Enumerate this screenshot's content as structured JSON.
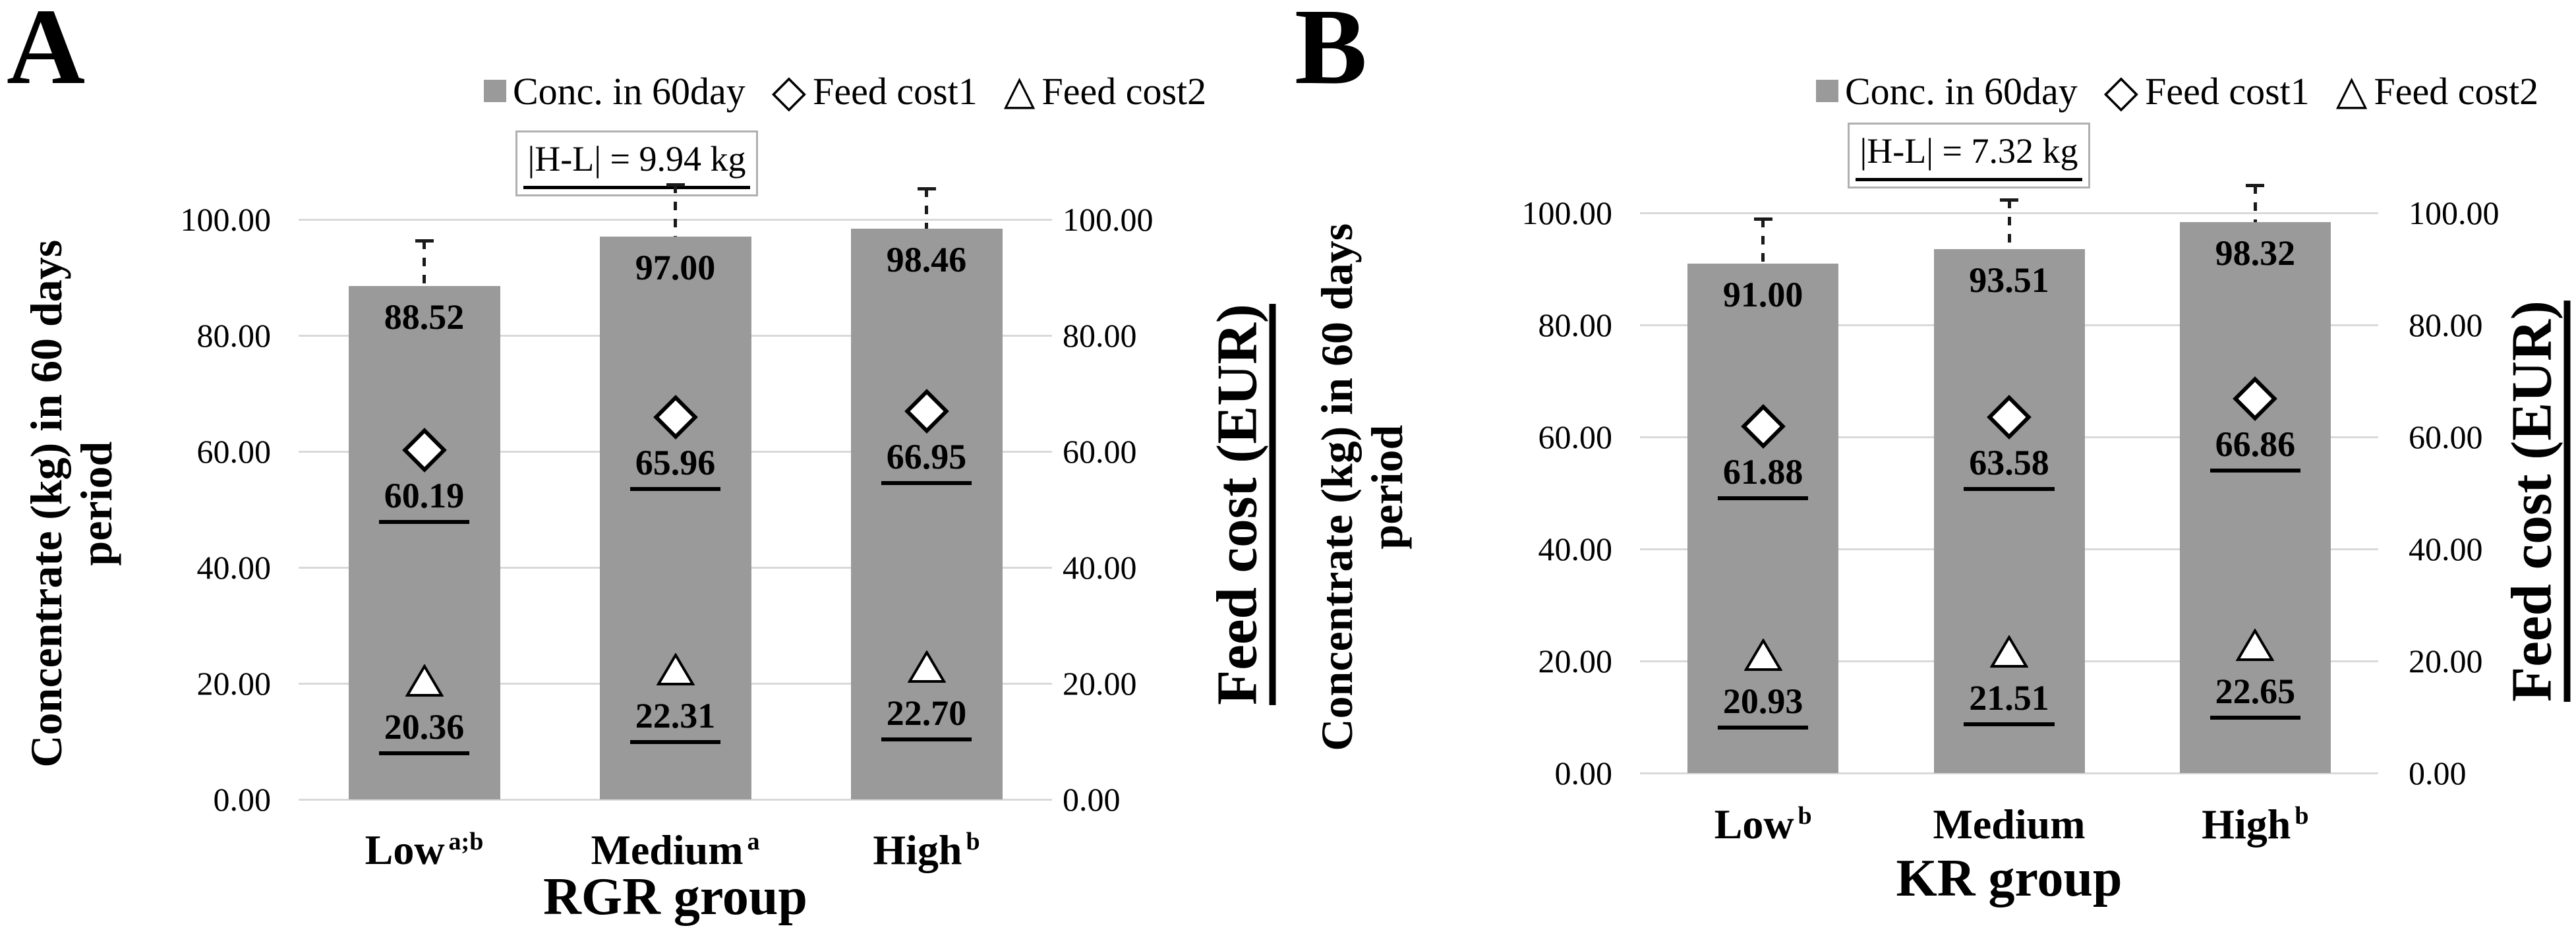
{
  "chart_data": [
    {
      "type": "bar",
      "panel": "A",
      "legend": [
        {
          "marker": "square",
          "label": "Conc. in 60day"
        },
        {
          "marker": "diamond",
          "label": "Feed cost1"
        },
        {
          "marker": "triangle",
          "label": "Feed cost2"
        }
      ],
      "legend_position": "top",
      "annotation": "|H-L| = 9.94 kg",
      "xlabel": "RGR group",
      "ylabel_left": [
        "Concentrate (kg) in 60 days",
        "period"
      ],
      "ylabel_right": "Feed cost (EUR)",
      "ylim": [
        0,
        100
      ],
      "grid": true,
      "yticks_values": [
        100,
        80,
        60,
        40,
        20,
        0
      ],
      "yticks_labels": [
        "100.00",
        "80.00",
        "60.00",
        "40.00",
        "20.00",
        "0.00"
      ],
      "categories": [
        {
          "label": "Low",
          "sup": "a;b"
        },
        {
          "label": "Medium",
          "sup": "a"
        },
        {
          "label": "High",
          "sup": "b"
        }
      ],
      "series": [
        {
          "name": "Conc. in 60day",
          "type": "bar",
          "values": [
            88.52,
            97.0,
            98.46
          ],
          "labels": [
            "88.52",
            "97.00",
            "98.46"
          ],
          "error_top": [
            96.4,
            106.0,
            105.3
          ]
        },
        {
          "name": "Feed cost1",
          "type": "diamond",
          "values": [
            60.19,
            65.96,
            66.95
          ],
          "labels": [
            "60.19",
            "65.96",
            "66.95"
          ]
        },
        {
          "name": "Feed cost2",
          "type": "triangle",
          "values": [
            20.36,
            22.31,
            22.7
          ],
          "labels": [
            "20.36",
            "22.31",
            "22.70"
          ]
        }
      ]
    },
    {
      "type": "bar",
      "panel": "B",
      "legend": [
        {
          "marker": "square",
          "label": "Conc. in 60day"
        },
        {
          "marker": "diamond",
          "label": "Feed cost1"
        },
        {
          "marker": "triangle",
          "label": "Feed cost2"
        }
      ],
      "legend_position": "top",
      "annotation": "|H-L| = 7.32 kg",
      "xlabel": "KR group",
      "ylabel_left": [
        "Concentrate (kg) in 60 days",
        "period"
      ],
      "ylabel_right": "Feed cost (EUR)",
      "ylim": [
        0,
        100
      ],
      "grid": true,
      "yticks_values": [
        100,
        80,
        60,
        40,
        20,
        0
      ],
      "yticks_labels": [
        "100.00",
        "80.00",
        "60.00",
        "40.00",
        "20.00",
        "0.00"
      ],
      "categories": [
        {
          "label": "Low",
          "sup": "b"
        },
        {
          "label": "Medium",
          "sup": ""
        },
        {
          "label": "High",
          "sup": "b"
        }
      ],
      "series": [
        {
          "name": "Conc. in 60day",
          "type": "bar",
          "values": [
            91.0,
            93.51,
            98.32
          ],
          "labels": [
            "91.00",
            "93.51",
            "98.32"
          ],
          "error_top": [
            98.9,
            102.4,
            104.9
          ]
        },
        {
          "name": "Feed cost1",
          "type": "diamond",
          "values": [
            61.88,
            63.58,
            66.86
          ],
          "labels": [
            "61.88",
            "63.58",
            "66.86"
          ]
        },
        {
          "name": "Feed cost2",
          "type": "triangle",
          "values": [
            20.93,
            21.51,
            22.65
          ],
          "labels": [
            "20.93",
            "21.51",
            "22.65"
          ]
        }
      ]
    }
  ],
  "colors": {
    "bar": "#9a9a9a",
    "legend_square": "#9a9a9a",
    "grid": "#d9d9d9",
    "error": "#1a1a1a",
    "marker_fill": "#ffffff",
    "marker_stroke": "#000000",
    "annotation_border": "#b0b0b0",
    "text": "#000000"
  }
}
